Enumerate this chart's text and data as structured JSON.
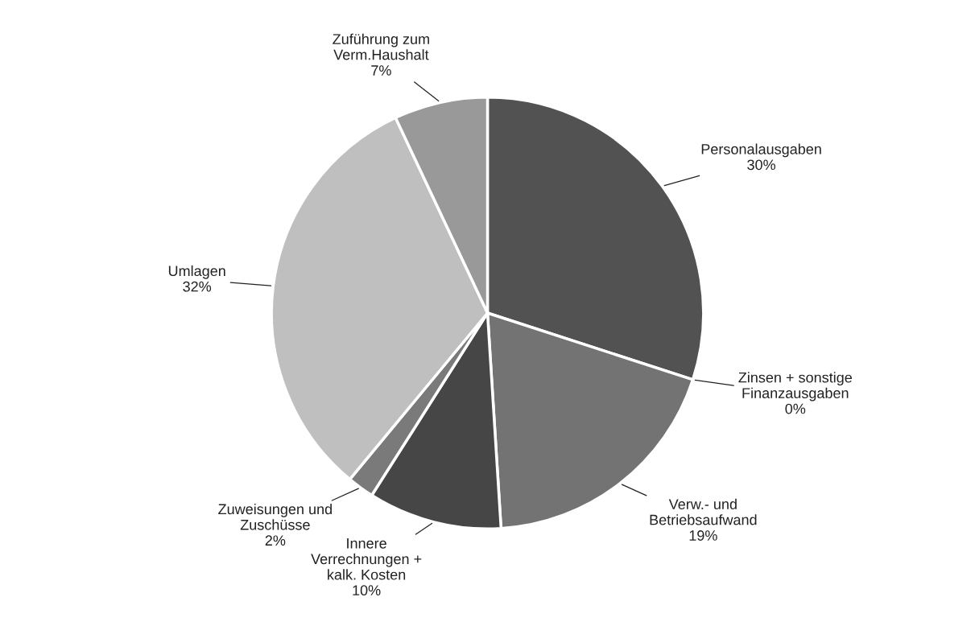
{
  "chart_data": {
    "type": "pie",
    "categories": [
      "Personalausgaben",
      "Zinsen + sonstige\nFinanzausgaben",
      "Verw.- und\nBetriebsaufwand",
      "Innere\nVerrechnungen +\nkalk. Kosten",
      "Zuweisungen und\nZuschüsse",
      "Umlagen",
      "Zuführung zum\nVerm.Haushalt"
    ],
    "values": [
      30,
      0,
      19,
      10,
      2,
      32,
      7
    ],
    "value_labels": [
      "30%",
      "0%",
      "19%",
      "10%",
      "2%",
      "32%",
      "7%"
    ],
    "colors": [
      "#525252",
      "#8c8c8c",
      "#737373",
      "#464646",
      "#7a7a7a",
      "#bfbfbf",
      "#999999"
    ]
  }
}
